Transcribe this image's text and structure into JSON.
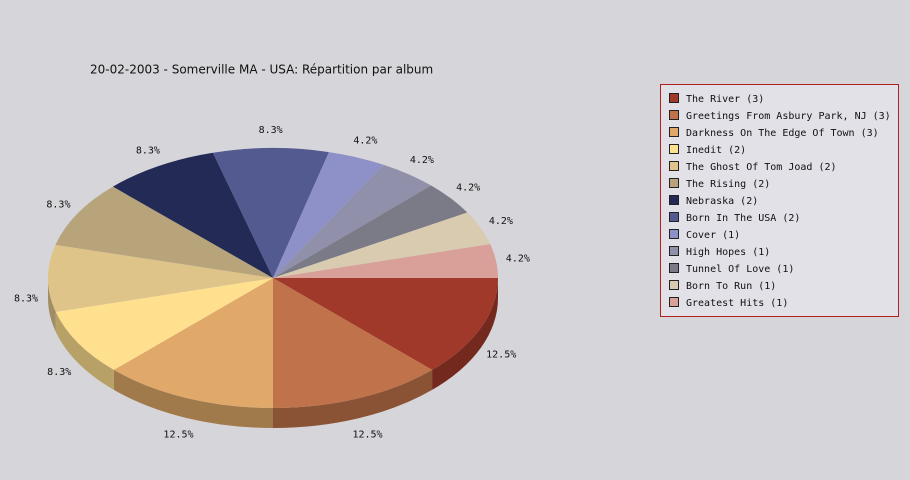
{
  "chart_data": {
    "type": "pie",
    "title": "20-02-2003 - Somerville MA - USA:  Répartition par album",
    "categories": [
      "The River (3)",
      "Greetings From Asbury Park, NJ (3)",
      "Darkness On The Edge Of Town (3)",
      "Inedit (2)",
      "The Ghost Of Tom Joad (2)",
      "The Rising (2)",
      "Nebraska (2)",
      "Born In The USA (2)",
      "Cover (1)",
      "High Hopes (1)",
      "Tunnel Of Love (1)",
      "Born To Run (1)",
      "Greatest Hits (1)"
    ],
    "values": [
      12.5,
      12.5,
      12.5,
      8.3,
      8.3,
      8.3,
      8.3,
      8.3,
      4.2,
      4.2,
      4.2,
      4.2,
      4.2
    ],
    "value_labels": [
      "12.5%",
      "12.5%",
      "12.5%",
      "8.3%",
      "8.3%",
      "8.3%",
      "8.3%",
      "8.3%",
      "4.2%",
      "4.2%",
      "4.2%",
      "4.2%",
      "4.2%"
    ],
    "colors": [
      "#a0392a",
      "#c0734a",
      "#e0a96a",
      "#ffe08f",
      "#dfc48a",
      "#b8a47a",
      "#222a55",
      "#525a8f",
      "#8e90c8",
      "#9090aa",
      "#7b7b88",
      "#d8cbb0",
      "#d8a098"
    ],
    "legend": "right"
  }
}
